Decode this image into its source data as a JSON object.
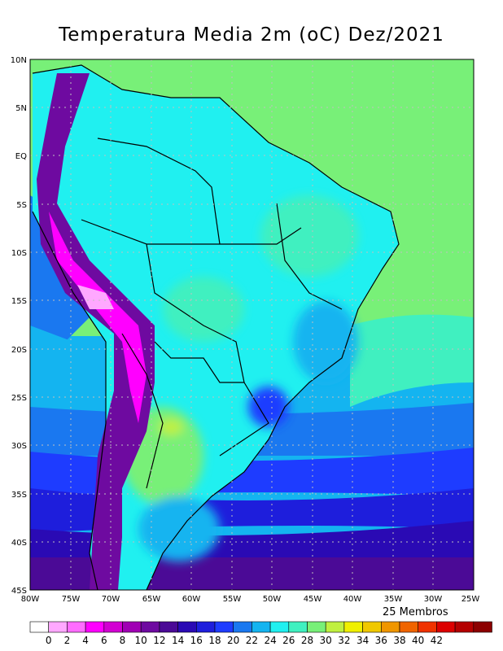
{
  "title": "Temperatura Media 2m (oC) Dez/2021",
  "members_label": "25 Membros",
  "lat_ticks": [
    "10N",
    "5N",
    "EQ",
    "5S",
    "10S",
    "15S",
    "20S",
    "25S",
    "30S",
    "35S",
    "40S",
    "45S"
  ],
  "lon_ticks": [
    "80W",
    "75W",
    "70W",
    "65W",
    "60W",
    "55W",
    "50W",
    "45W",
    "40W",
    "35W",
    "30W",
    "25W"
  ],
  "colorbar": {
    "labels": [
      "0",
      "2",
      "4",
      "6",
      "8",
      "10",
      "12",
      "14",
      "16",
      "18",
      "20",
      "22",
      "24",
      "26",
      "28",
      "30",
      "32",
      "34",
      "36",
      "38",
      "40",
      "42"
    ],
    "colors": [
      "#ffffff",
      "#ffa8ff",
      "#ff6cff",
      "#ff00ff",
      "#d200d2",
      "#a000b4",
      "#6e0aa0",
      "#4b0a96",
      "#2a0ab4",
      "#1e1edc",
      "#1e3cff",
      "#1a78f0",
      "#14b4f0",
      "#20f0f0",
      "#40f0c0",
      "#78f078",
      "#c0f040",
      "#f0f000",
      "#f0c800",
      "#f09600",
      "#f06400",
      "#f03200",
      "#dc0000",
      "#b40000",
      "#8c0000"
    ]
  },
  "legend_colors": {
    "ocean_north": "#78f078",
    "land_warm": "#20f0f0",
    "land_hot": "#40f0c0",
    "andes_cold": "#ff6cff",
    "andes_core": "#ff00ff",
    "south_ocean": "#2a0ab4",
    "deep_south": "#6e0aa0"
  }
}
